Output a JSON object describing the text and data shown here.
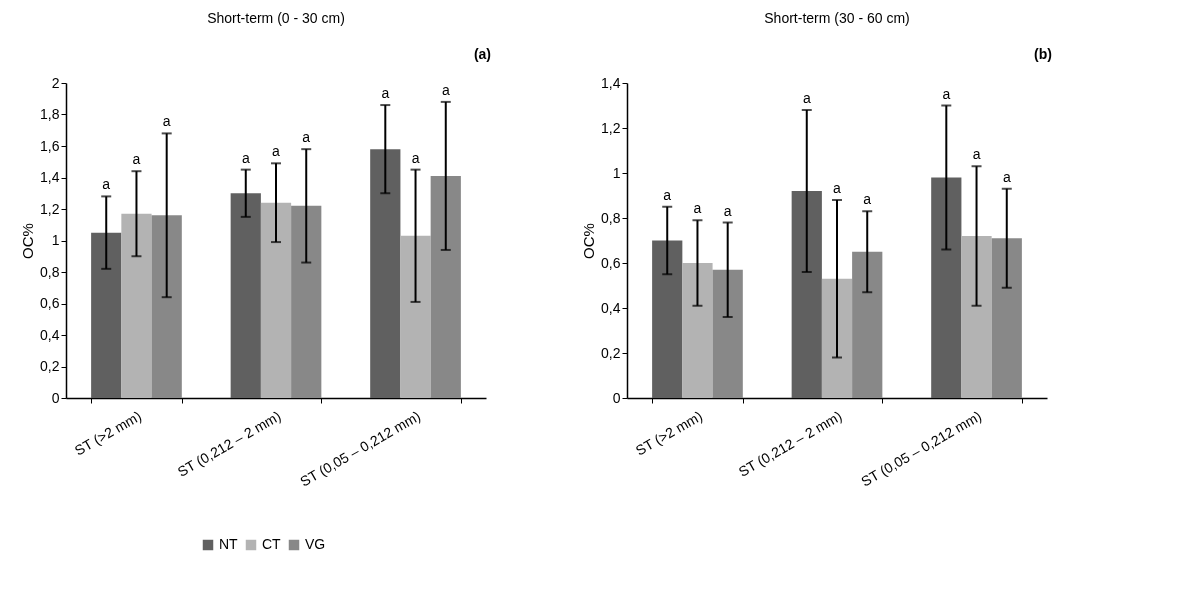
{
  "chart_data": [
    {
      "type": "bar",
      "title": "Short-term (0 - 30 cm)",
      "ylabel": "OC%",
      "categories": [
        "ST (>2 mm)",
        "ST (0,212 – 2 mm)",
        "ST (0,05 – 0,212 mm)"
      ],
      "series": [
        {
          "name": "NT",
          "color": "#606060",
          "values": [
            1.05,
            1.3,
            1.58
          ],
          "errors": [
            [
              0.82,
              1.28
            ],
            [
              1.15,
              1.45
            ],
            [
              1.3,
              1.86
            ]
          ]
        },
        {
          "name": "CT",
          "color": "#b3b3b3",
          "values": [
            1.17,
            1.24,
            1.03
          ],
          "errors": [
            [
              0.9,
              1.44
            ],
            [
              0.99,
              1.49
            ],
            [
              0.61,
              1.45
            ]
          ]
        },
        {
          "name": "VG",
          "color": "#888888",
          "values": [
            1.16,
            1.22,
            1.41
          ],
          "errors": [
            [
              0.64,
              1.68
            ],
            [
              0.86,
              1.58
            ],
            [
              0.94,
              1.88
            ]
          ]
        }
      ],
      "ylim": [
        0,
        2
      ],
      "yticks": [
        0,
        {
          "value": 0.2,
          "label": "0,2"
        },
        {
          "value": 0.4,
          "label": "0,4"
        },
        {
          "value": 0.6,
          "label": "0,6"
        },
        {
          "value": 0.8,
          "label": "0,8"
        },
        1,
        {
          "value": 1.2,
          "label": "1,2"
        },
        {
          "value": 1.4,
          "label": "1,4"
        },
        {
          "value": 1.6,
          "label": "1,6"
        },
        {
          "value": 1.8,
          "label": "1,8"
        },
        2
      ],
      "legend": "bottom",
      "annotations": [
        "(a)",
        "a",
        "a",
        "a",
        "a",
        "a",
        "a",
        "a",
        "a",
        "a"
      ]
    },
    {
      "type": "bar",
      "title": "Short-term (30 - 60 cm)",
      "ylabel": "OC%",
      "categories": [
        "ST (>2 mm)",
        "ST (0,212 – 2 mm)",
        "ST (0,05 – 0,212 mm)"
      ],
      "series": [
        {
          "name": "NT",
          "color": "#606060",
          "values": [
            0.7,
            0.92,
            0.98
          ],
          "errors": [
            [
              0.55,
              0.85
            ],
            [
              0.56,
              1.28
            ],
            [
              0.66,
              1.3
            ]
          ]
        },
        {
          "name": "CT",
          "color": "#b3b3b3",
          "values": [
            0.6,
            0.53,
            0.72
          ],
          "errors": [
            [
              0.41,
              0.79
            ],
            [
              0.18,
              0.88
            ],
            [
              0.41,
              1.03
            ]
          ]
        },
        {
          "name": "VG",
          "color": "#888888",
          "values": [
            0.57,
            0.65,
            0.71
          ],
          "errors": [
            [
              0.36,
              0.78
            ],
            [
              0.47,
              0.83
            ],
            [
              0.49,
              0.93
            ]
          ]
        }
      ],
      "ylim": [
        0,
        1.4
      ],
      "yticks": [
        0,
        {
          "value": 0.2,
          "label": "0,2"
        },
        {
          "value": 0.4,
          "label": "0,4"
        },
        {
          "value": 0.6,
          "label": "0,6"
        },
        {
          "value": 0.8,
          "label": "0,8"
        },
        1,
        {
          "value": 1.2,
          "label": "1,2"
        },
        {
          "value": 1.4,
          "label": "1,4"
        }
      ],
      "legend": "bottom",
      "annotations": [
        "(b)",
        "a",
        "a",
        "a",
        "a",
        "a",
        "a",
        "a",
        "a",
        "a"
      ]
    }
  ]
}
